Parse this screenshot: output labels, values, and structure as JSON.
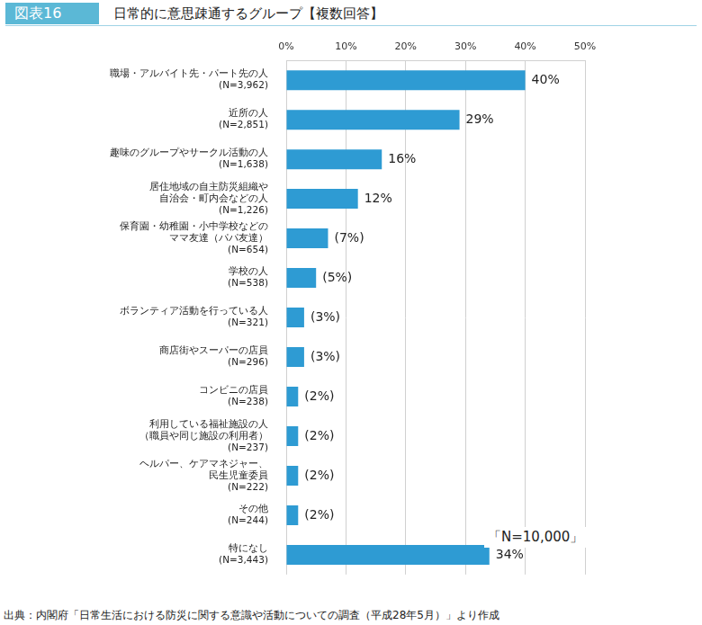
{
  "header": {
    "badge": "図表16"
  },
  "chart_data": {
    "type": "bar",
    "orientation": "horizontal",
    "title": "日常的に意思疎通するグループ【複数回答】",
    "annotation": "「N=10,000」",
    "categories": [
      "職場・アルバイト先・パート先の人\n(N=3,962)",
      "近所の人\n(N=2,851)",
      "趣味のグループやサークル活動の人\n(N=1,638)",
      "居住地域の自主防災組織や\n自治会・町内会などの人\n(N=1,226)",
      "保育園・幼稚園・小中学校などの\nママ友達（パパ友達）\n(N=654)",
      "学校の人\n(N=538)",
      "ボランティア活動を行っている人\n(N=321)",
      "商店街やスーパーの店員\n(N=296)",
      "コンビニの店員\n(N=238)",
      "利用している福祉施設の人\n（職員や同じ施設の利用者）\n(N=237)",
      "ヘルパー、ケアマネジャー、\n民生児童委員\n(N=222)",
      "その他\n(N=244)",
      "特になし\n(N=3,443)"
    ],
    "values": [
      40,
      29,
      16,
      12,
      7,
      5,
      3,
      3,
      2,
      2,
      2,
      2,
      34
    ],
    "value_labels": [
      "40%",
      "29%",
      "16%",
      "12%",
      "(7%)",
      "(5%)",
      "(3%)",
      "(3%)",
      "(2%)",
      "(2%)",
      "(2%)",
      "(2%)",
      "34%"
    ],
    "data_labels": true,
    "color": "#2e9bd3",
    "xlim": [
      0,
      50
    ],
    "xticks": [
      {
        "value": 0,
        "label": "0%"
      },
      {
        "value": 10,
        "label": "10%"
      },
      {
        "value": 20,
        "label": "20%"
      },
      {
        "value": 30,
        "label": "30%"
      },
      {
        "value": 40,
        "label": "40%"
      },
      {
        "value": 50,
        "label": "50%"
      }
    ],
    "grid": true
  },
  "source": "出典：内閣府「日常生活における防災に関する意識や活動についての調査（平成28年5月）」より作成"
}
